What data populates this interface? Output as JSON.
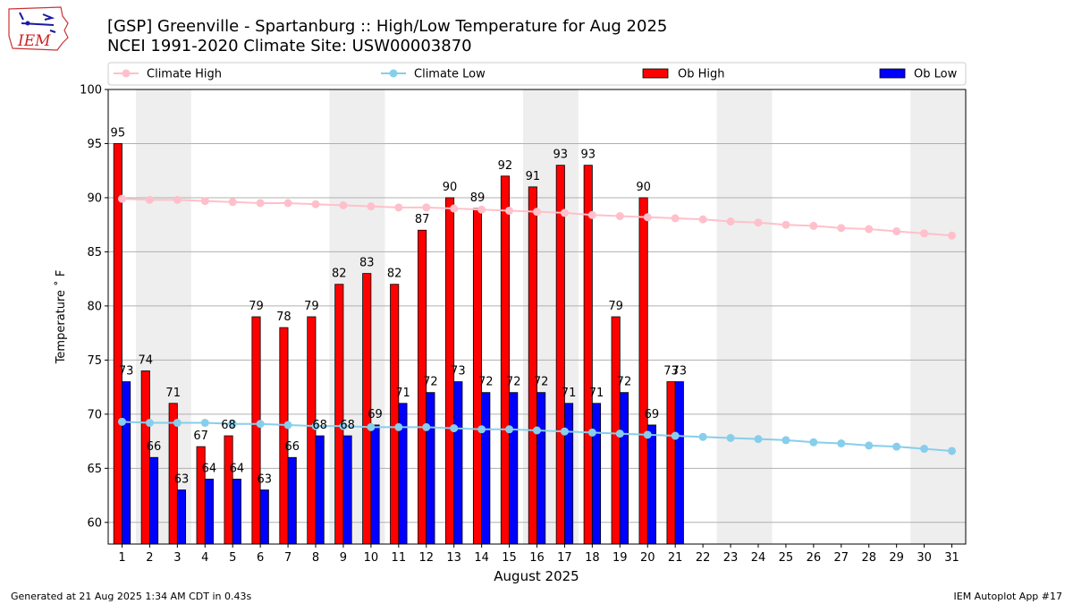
{
  "header": {
    "title_line1": "[GSP] Greenville - Spartanburg :: High/Low Temperature for Aug 2025",
    "title_line2": "NCEI 1991-2020 Climate Site: USW00003870",
    "logo_text": "IEM"
  },
  "footer": {
    "left": "Generated at 21 Aug 2025 1:34 AM CDT in 0.43s",
    "right": "IEM Autoplot App #17"
  },
  "colors": {
    "ob_high": "#ff0000",
    "ob_low": "#0000ff",
    "climate_high": "#ffc0cb",
    "climate_low": "#87ceeb",
    "weekend_band": "#eeeeee",
    "grid": "#b0b0b0"
  },
  "chart_data": {
    "type": "bar",
    "xlabel": "August 2025",
    "ylabel": "Temperature ˚ F",
    "ylim": [
      58,
      100
    ],
    "xlim": [
      0.5,
      31.5
    ],
    "yticks": [
      60,
      65,
      70,
      75,
      80,
      85,
      90,
      95,
      100
    ],
    "grid": "horizontal",
    "legend_position": "top",
    "days": [
      1,
      2,
      3,
      4,
      5,
      6,
      7,
      8,
      9,
      10,
      11,
      12,
      13,
      14,
      15,
      16,
      17,
      18,
      19,
      20,
      21,
      22,
      23,
      24,
      25,
      26,
      27,
      28,
      29,
      30,
      31
    ],
    "weekend_bands": [
      [
        2,
        3
      ],
      [
        9,
        10
      ],
      [
        16,
        17
      ],
      [
        23,
        24
      ],
      [
        30,
        31
      ]
    ],
    "legend": [
      {
        "name": "Climate High",
        "kind": "line"
      },
      {
        "name": "Climate Low",
        "kind": "line"
      },
      {
        "name": "Ob High",
        "kind": "bar"
      },
      {
        "name": "Ob Low",
        "kind": "bar"
      }
    ],
    "series": [
      {
        "name": "Ob High",
        "type": "bar",
        "values": [
          95,
          74,
          71,
          67,
          68,
          79,
          78,
          79,
          82,
          83,
          82,
          87,
          90,
          89,
          92,
          91,
          93,
          93,
          79,
          90,
          73
        ]
      },
      {
        "name": "Ob Low",
        "type": "bar",
        "values": [
          73,
          66,
          63,
          64,
          64,
          63,
          66,
          68,
          68,
          69,
          71,
          72,
          73,
          72,
          72,
          72,
          71,
          71,
          72,
          69,
          73
        ]
      },
      {
        "name": "Climate High",
        "type": "line",
        "values": [
          89.9,
          89.8,
          89.8,
          89.7,
          89.6,
          89.5,
          89.5,
          89.4,
          89.3,
          89.2,
          89.1,
          89.1,
          89.0,
          88.9,
          88.8,
          88.7,
          88.6,
          88.4,
          88.3,
          88.2,
          88.1,
          88.0,
          87.8,
          87.7,
          87.5,
          87.4,
          87.2,
          87.1,
          86.9,
          86.7,
          86.5
        ]
      },
      {
        "name": "Climate Low",
        "type": "line",
        "values": [
          69.3,
          69.2,
          69.2,
          69.2,
          69.1,
          69.1,
          69.0,
          68.9,
          68.9,
          68.8,
          68.8,
          68.8,
          68.7,
          68.6,
          68.6,
          68.5,
          68.4,
          68.3,
          68.2,
          68.1,
          68.0,
          67.9,
          67.8,
          67.7,
          67.6,
          67.4,
          67.3,
          67.1,
          67.0,
          66.8,
          66.6
        ]
      }
    ]
  }
}
